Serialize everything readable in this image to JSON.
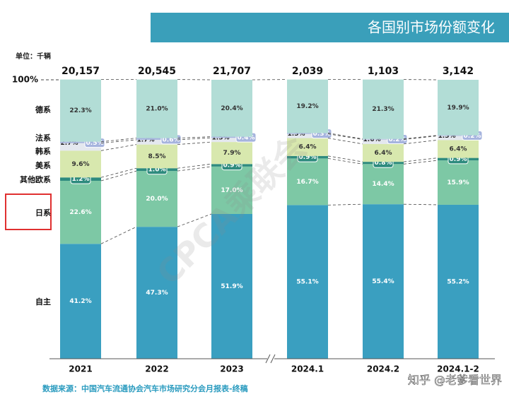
{
  "chart_data": {
    "type": "stacked_bar",
    "title": "各国别市场份额变化",
    "unit": "单位：千辆",
    "source": "数据来源：中国汽车流通协会汽车市场研究分会月报表-终稿",
    "watermarks": [
      "CPCA乘联会",
      "知乎 @老爹看世界"
    ],
    "categories": [
      "2021",
      "2022",
      "2023",
      "2024.1",
      "2024.2",
      "2024.1-2"
    ],
    "ylim": [
      0,
      100
    ],
    "yticks": [
      {
        "value": 100,
        "label": "100%"
      }
    ],
    "totals": {
      "values": [
        20157,
        20545,
        21707,
        2039,
        1103,
        3142
      ],
      "value_labels": [
        "20,157",
        "20,545",
        "21,707",
        "2,039",
        "1,103",
        "3,142"
      ]
    },
    "series": [
      {
        "name": "自主",
        "color": "#3a9fc0",
        "values": [
          41.2,
          47.3,
          51.9,
          55.1,
          55.4,
          55.2
        ],
        "value_labels": [
          "41.2%",
          "47.3%",
          "51.9%",
          "55.1%",
          "55.4%",
          "55.2%"
        ]
      },
      {
        "name": "日系",
        "color": "#7dc8a5",
        "values": [
          22.6,
          20.0,
          17.0,
          16.7,
          14.4,
          15.9
        ],
        "value_labels": [
          "22.6%",
          "20.0%",
          "17.0%",
          "16.7%",
          "14.4%",
          "15.9%"
        ]
      },
      {
        "name": "其他欧系",
        "color": "#2e8b7e",
        "values": [
          1.2,
          1.0,
          0.9,
          0.9,
          0.8,
          0.9
        ],
        "value_labels": [
          "1.2%",
          "1.0%",
          "0.9%",
          "0.9%",
          "0.8%",
          "0.9%"
        ]
      },
      {
        "name": "美系",
        "color": "#d8e8ae",
        "values": [
          9.6,
          8.5,
          7.9,
          6.4,
          6.4,
          6.4
        ],
        "value_labels": [
          "9.6%",
          "8.5%",
          "7.9%",
          "6.4%",
          "6.4%",
          "6.4%"
        ]
      },
      {
        "name": "韩系",
        "color": "#e4e8ef",
        "values": [
          2.7,
          1.7,
          1.5,
          1.5,
          1.6,
          1.5
        ],
        "value_labels": [
          "2.7%",
          "1.7%",
          "1.5%",
          "1.5%",
          "1.6%",
          "1.5%"
        ]
      },
      {
        "name": "法系",
        "color": "#a6b4de",
        "values": [
          0.5,
          0.6,
          0.4,
          0.3,
          0.2,
          0.2
        ],
        "value_labels": [
          "0.5%",
          "0.6%",
          "0.4%",
          "0.3%",
          "0.2%",
          "0.2%"
        ]
      },
      {
        "name": "德系",
        "color": "#b2ddd6",
        "values": [
          22.3,
          21.0,
          20.4,
          19.2,
          21.3,
          19.9
        ],
        "value_labels": [
          "22.3%",
          "21.0%",
          "20.4%",
          "19.2%",
          "21.3%",
          "19.9%"
        ]
      }
    ]
  }
}
